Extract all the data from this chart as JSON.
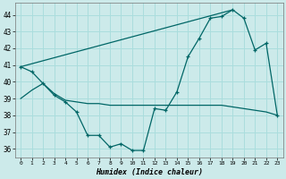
{
  "xlabel": "Humidex (Indice chaleur)",
  "bg_color": "#cceaea",
  "grid_color": "#aadddd",
  "line_color": "#006666",
  "ylim": [
    35.5,
    44.7
  ],
  "xlim": [
    -0.5,
    23.5
  ],
  "yticks": [
    36,
    37,
    38,
    39,
    40,
    41,
    42,
    43,
    44
  ],
  "xticks": [
    0,
    1,
    2,
    3,
    4,
    5,
    6,
    7,
    8,
    9,
    10,
    11,
    12,
    13,
    14,
    15,
    16,
    17,
    18,
    19,
    20,
    21,
    22,
    23
  ],
  "line1_x": [
    0,
    1,
    2,
    3,
    4,
    5,
    6,
    7,
    8,
    9,
    10,
    11,
    12,
    13,
    14,
    15,
    16,
    17,
    18,
    19,
    20,
    21,
    22,
    23
  ],
  "line1_y": [
    40.9,
    40.6,
    39.9,
    39.2,
    38.8,
    38.2,
    36.8,
    36.8,
    36.1,
    36.3,
    35.9,
    35.9,
    38.4,
    38.3,
    39.4,
    41.5,
    42.6,
    43.8,
    43.9,
    44.3,
    43.8,
    41.9,
    42.3,
    38.0
  ],
  "line2_x": [
    0,
    1,
    2,
    3,
    4,
    5,
    6,
    7,
    8,
    9,
    10,
    11,
    12,
    13,
    14,
    15,
    16,
    17,
    18,
    19,
    20,
    21,
    22,
    23
  ],
  "line2_y": [
    39.0,
    39.5,
    39.9,
    39.3,
    38.9,
    38.8,
    38.7,
    38.7,
    38.6,
    38.6,
    38.6,
    38.6,
    38.6,
    38.6,
    38.6,
    38.6,
    38.6,
    38.6,
    38.6,
    38.5,
    38.4,
    38.3,
    38.2,
    38.0
  ],
  "line3_x": [
    0,
    19
  ],
  "line3_y": [
    40.9,
    44.3
  ]
}
